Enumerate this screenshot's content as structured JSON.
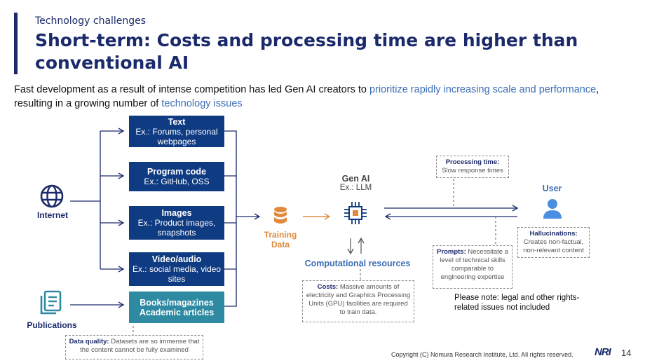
{
  "header": {
    "subtitle": "Technology challenges",
    "title": "Short-term: Costs and processing time are higher than conventional AI"
  },
  "intro": {
    "part1": "Fast development as a result of intense competition has led Gen AI creators to ",
    "highlight1": "prioritize rapidly increasing scale and performance",
    "part2": ", resulting in a growing number of ",
    "highlight2": "technology issues"
  },
  "sources": {
    "internet": "Internet",
    "publications": "Publications"
  },
  "data_boxes": [
    {
      "title": "Text",
      "detail": "Ex.: Forums, personal webpages"
    },
    {
      "title": "Program code",
      "detail": "Ex.: GitHub, OSS"
    },
    {
      "title": "Images",
      "detail": "Ex.: Product images, snapshots"
    },
    {
      "title": "Video/audio",
      "detail": "Ex.: social media, video sites"
    },
    {
      "title": "Books/magazines",
      "detail": "Academic articles"
    }
  ],
  "training": {
    "line1": "Training",
    "line2": "Data"
  },
  "genai": {
    "title": "Gen AI",
    "sub": "Ex.: LLM"
  },
  "computational": "Computational resources",
  "user": "User",
  "notes": {
    "processing_label": "Processing time:",
    "processing_text": "Slow response times",
    "costs_label": "Costs:",
    "costs_text": "Massive amounts of electricity and Graphics Processing Units (GPU) facilities are required to train data.",
    "prompts_label": "Prompts:",
    "prompts_text": "Necessitate a level of technical skills comparable to engineering expertise",
    "hallucinations_label": "Hallucinations:",
    "hallucinations_text": "Creates non-factual, non-relevant content",
    "quality_label": "Data quality:",
    "quality_text": "Datasets are so immense that the content cannot be fully examined"
  },
  "please_note": "Please note: legal and other rights-related issues not included",
  "footer": {
    "copyright": "Copyright (C)  Nomura Research Institute, Ltd. All rights reserved.",
    "logo": "NRI",
    "page": "14"
  },
  "colors": {
    "navy": "#0f3b82",
    "teal": "#2e8aa3",
    "orange": "#e08a3c",
    "accent_blue": "#3b6db5"
  }
}
